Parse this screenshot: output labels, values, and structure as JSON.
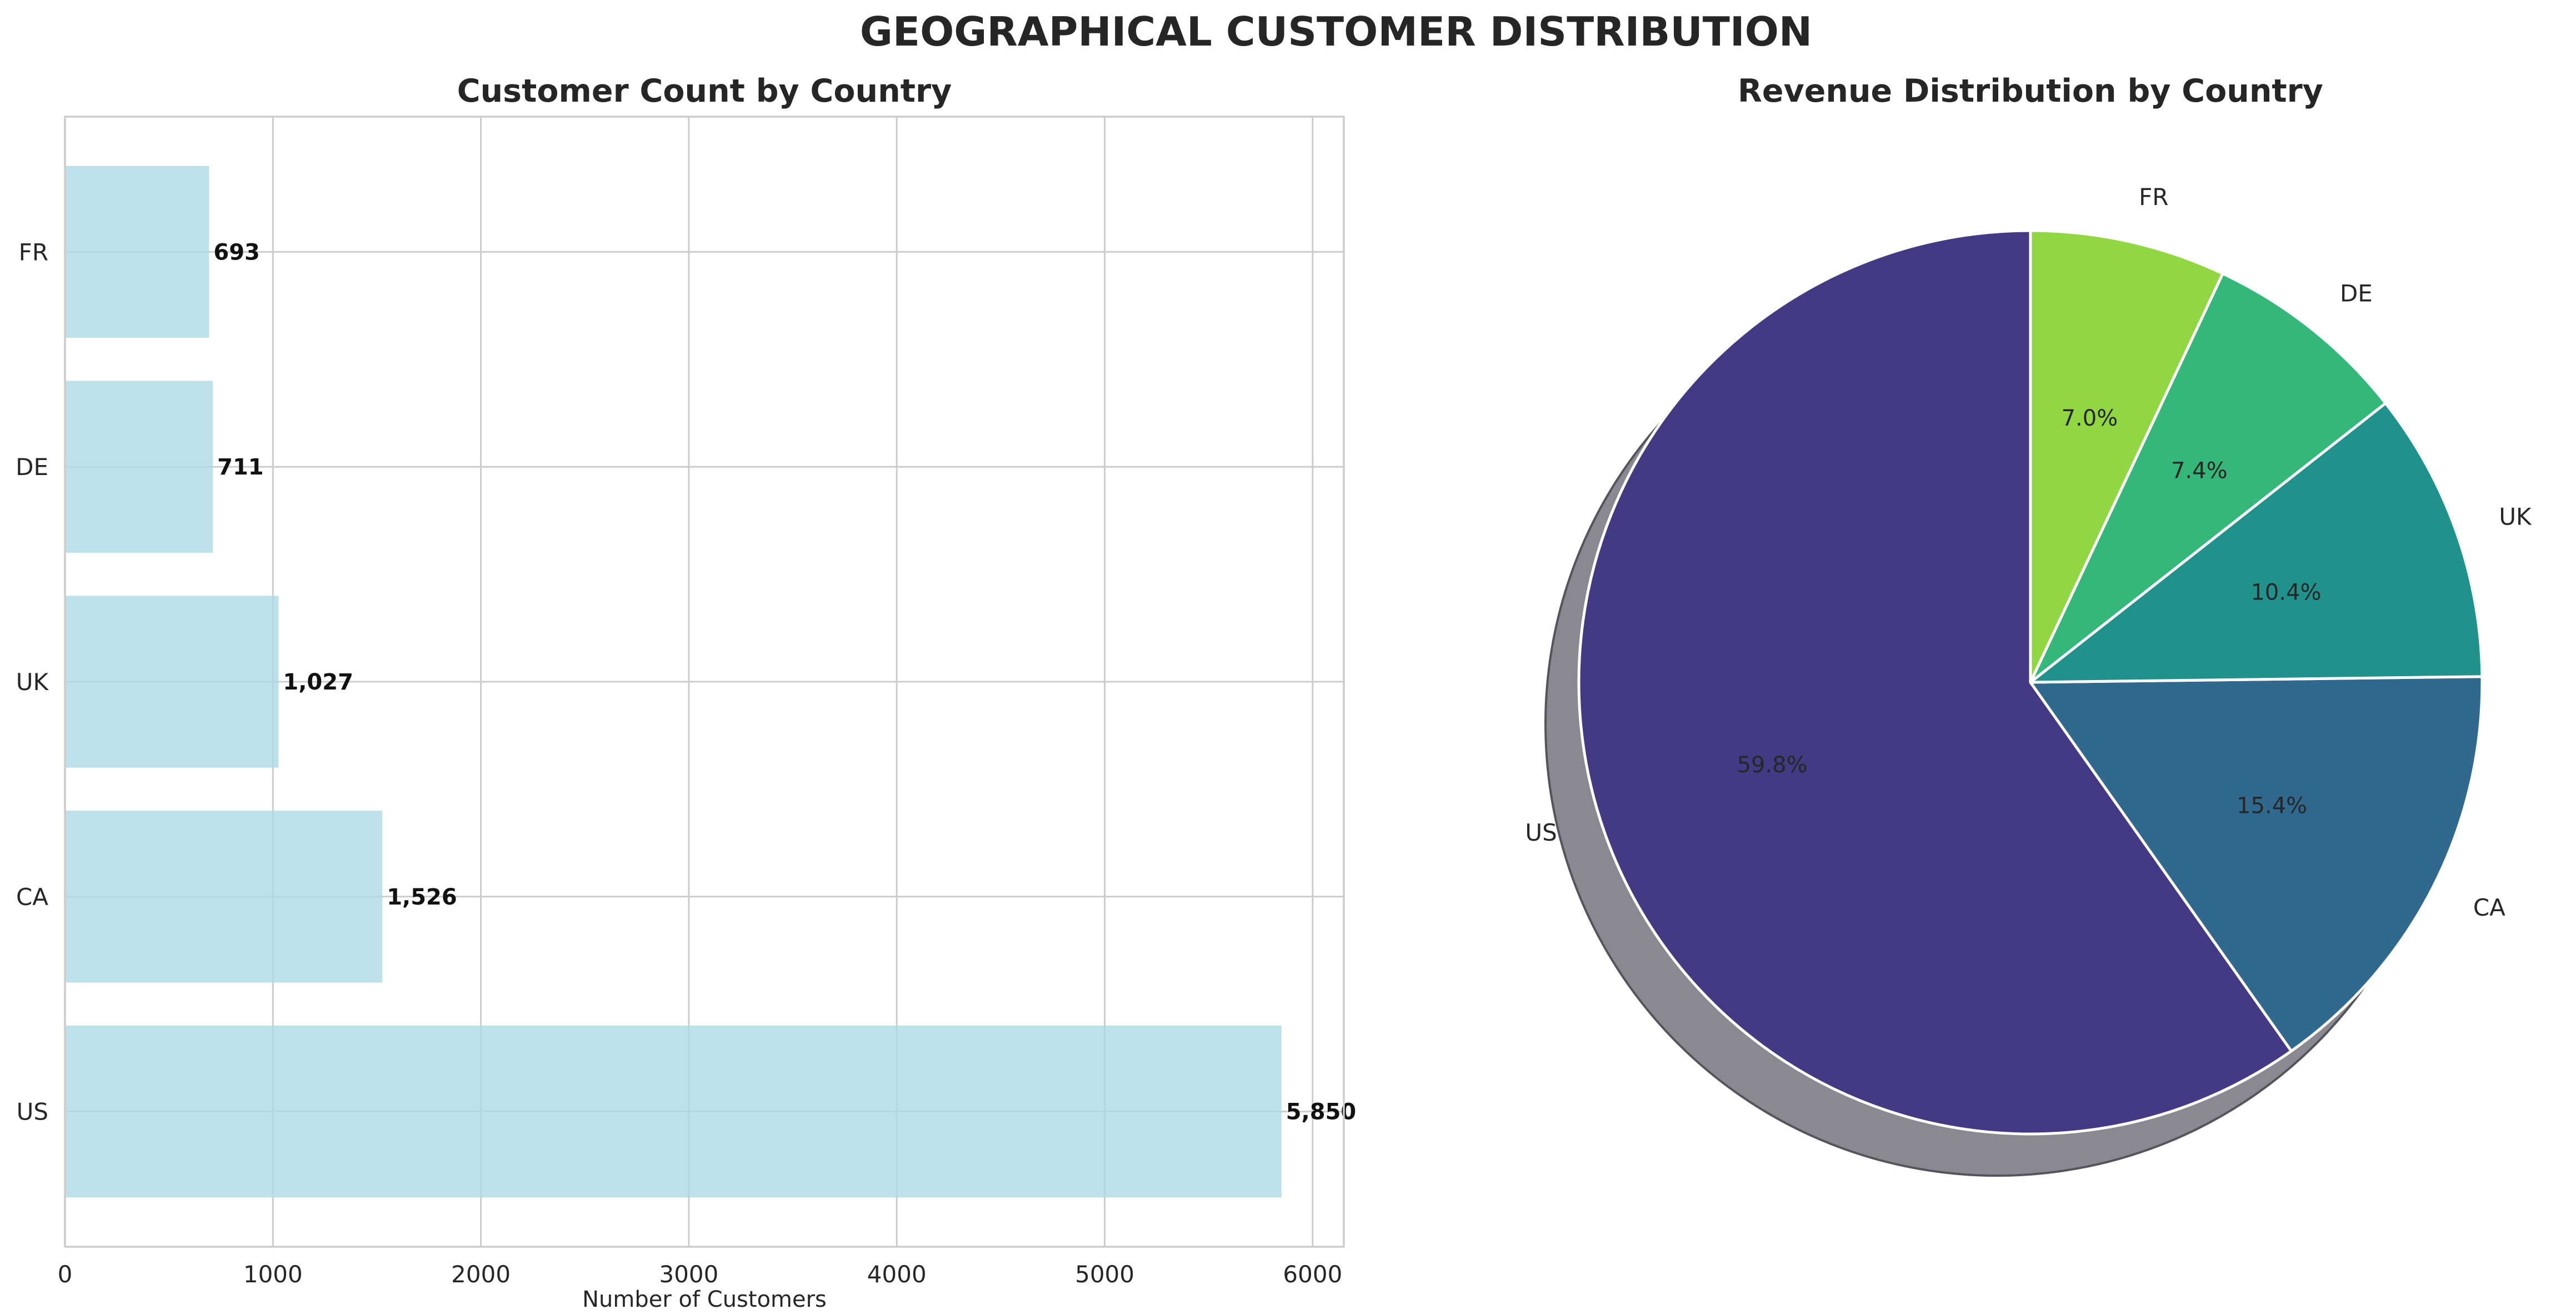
{
  "figure": {
    "title": "GEOGRAPHICAL CUSTOMER DISTRIBUTION"
  },
  "chart_data": [
    {
      "type": "bar",
      "orientation": "horizontal",
      "title": "Customer Count by Country",
      "xlabel": "Number of Customers",
      "ylabel": "",
      "categories": [
        "US",
        "CA",
        "UK",
        "DE",
        "FR"
      ],
      "values": [
        5850,
        1526,
        1027,
        711,
        693
      ],
      "value_labels": [
        "5,850",
        "1,526",
        "1,027",
        "711",
        "693"
      ],
      "xlim": [
        0,
        6150
      ],
      "xticks": [
        0,
        1000,
        2000,
        3000,
        4000,
        5000,
        6000
      ],
      "xtick_labels": [
        "0",
        "1000",
        "2000",
        "3000",
        "4000",
        "5000",
        "6000"
      ],
      "grid": true,
      "bar_color": "#add8e6"
    },
    {
      "type": "pie",
      "title": "Revenue Distribution by Country",
      "labels": [
        "US",
        "CA",
        "UK",
        "DE",
        "FR"
      ],
      "values": [
        59.8,
        15.4,
        10.4,
        7.4,
        7.0
      ],
      "pct_labels": [
        "59.8%",
        "15.4%",
        "10.4%",
        "7.4%",
        "7.0%"
      ],
      "colors": [
        "#443983",
        "#31688e",
        "#21918c",
        "#35b779",
        "#90d743"
      ],
      "start_angle_deg": 90,
      "direction": "counterclockwise",
      "shadow": true
    }
  ]
}
